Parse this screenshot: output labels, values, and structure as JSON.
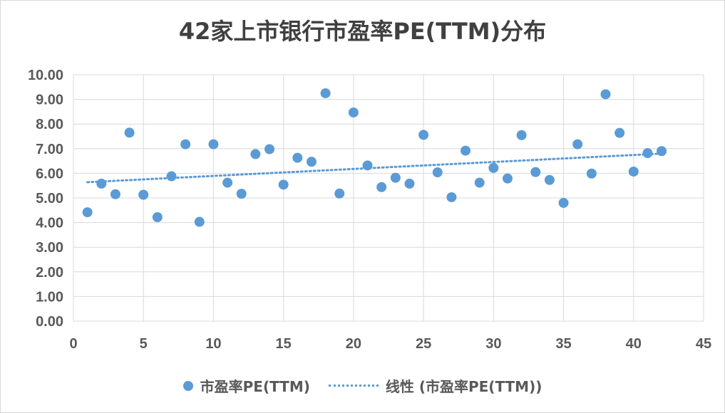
{
  "chart_data": {
    "type": "scatter",
    "title": "42家上市银行市盈率PE(TTM)分布",
    "xlabel": "",
    "ylabel": "",
    "xlim": [
      0,
      45
    ],
    "ylim": [
      0,
      10
    ],
    "x_ticks": [
      "0",
      "5",
      "10",
      "15",
      "20",
      "25",
      "30",
      "35",
      "40",
      "45"
    ],
    "y_ticks": [
      "0.00",
      "1.00",
      "2.00",
      "3.00",
      "4.00",
      "5.00",
      "6.00",
      "7.00",
      "8.00",
      "9.00",
      "10.00"
    ],
    "grid": true,
    "legend_position": "bottom",
    "series": [
      {
        "name": "市盈率PE(TTM)",
        "color": "#5b9bd5",
        "points": [
          [
            1,
            4.42
          ],
          [
            2,
            5.58
          ],
          [
            3,
            5.15
          ],
          [
            4,
            7.65
          ],
          [
            5,
            5.13
          ],
          [
            6,
            4.22
          ],
          [
            7,
            5.88
          ],
          [
            8,
            7.18
          ],
          [
            9,
            4.03
          ],
          [
            10,
            7.18
          ],
          [
            11,
            5.62
          ],
          [
            12,
            5.17
          ],
          [
            13,
            6.78
          ],
          [
            14,
            6.98
          ],
          [
            15,
            5.54
          ],
          [
            16,
            6.63
          ],
          [
            17,
            6.47
          ],
          [
            18,
            9.25
          ],
          [
            19,
            5.18
          ],
          [
            20,
            8.47
          ],
          [
            21,
            6.32
          ],
          [
            22,
            5.44
          ],
          [
            23,
            5.82
          ],
          [
            24,
            5.58
          ],
          [
            25,
            7.56
          ],
          [
            26,
            6.04
          ],
          [
            27,
            5.03
          ],
          [
            28,
            6.92
          ],
          [
            29,
            5.62
          ],
          [
            30,
            6.22
          ],
          [
            31,
            5.79
          ],
          [
            32,
            7.55
          ],
          [
            33,
            6.05
          ],
          [
            34,
            5.73
          ],
          [
            35,
            4.8
          ],
          [
            36,
            7.18
          ],
          [
            37,
            5.99
          ],
          [
            38,
            9.21
          ],
          [
            39,
            7.64
          ],
          [
            40,
            6.07
          ],
          [
            41,
            6.82
          ],
          [
            42,
            6.9
          ]
        ]
      }
    ],
    "trendline": {
      "name": "线性 (市盈率PE(TTM))",
      "type": "linear",
      "color": "#5b9bd5",
      "x_range": [
        1,
        42
      ],
      "y_range": [
        5.64,
        6.8
      ]
    }
  }
}
